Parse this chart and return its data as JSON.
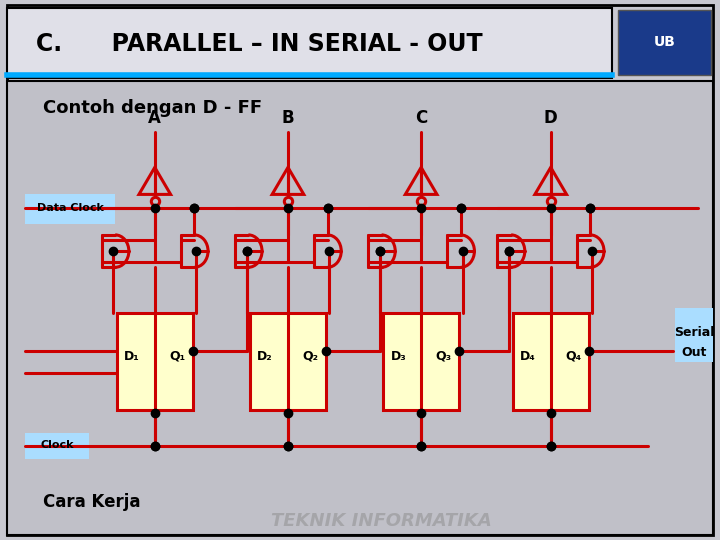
{
  "title": "C.      PARALLEL – IN SERIAL - OUT",
  "subtitle": "Contoh dengan D - FF",
  "bg_outer": "#c8c8d0",
  "bg_inner": "#c0c0c8",
  "title_bg": "#e0e0e8",
  "header_line_color": "#00aaff",
  "red": "#cc0000",
  "black": "#000000",
  "yellow_box": "#ffffcc",
  "light_blue_label": "#aaddff",
  "input_labels": [
    "A",
    "B",
    "C",
    "D"
  ],
  "data_clock_label": "Data Clock",
  "clock_label": "Clock",
  "serial_label_1": "Serial",
  "serial_label_2": "Out",
  "cara_kerja_label": "Cara Kerja",
  "d_labels": [
    "D₁",
    "D₂",
    "D₃",
    "D₄"
  ],
  "q_labels": [
    "Q₁",
    "Q₂",
    "Q₃",
    "Q₄"
  ]
}
